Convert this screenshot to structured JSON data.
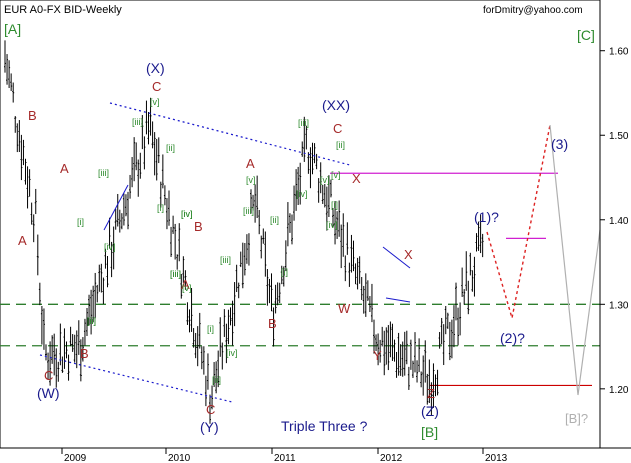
{
  "header": {
    "title": "EUR A0-FX BID-Weekly",
    "author": "forDmitry@yahoo.com"
  },
  "colors": {
    "background": "#ffffff",
    "axis": "#000000",
    "candles": "#000000",
    "brown_labels": "#a52a2a",
    "navy_labels": "#1a1a8c",
    "green_labels": "#2e8b2e",
    "resistance": "#d020d0",
    "support_red": "#cc0000",
    "dashed_green": "#2e7d2e",
    "projection_red": "#dd2222",
    "projection_gray": "#b0b0b0",
    "trend_blue": "#1a1acc"
  },
  "chart_data": {
    "type": "ohlc",
    "title": "EUR A0-FX BID-Weekly",
    "x_tick_labels": [
      "2009",
      "2010",
      "2011",
      "2012",
      "2013"
    ],
    "y_tick_labels": [
      "1.60",
      "1.50",
      "1.40",
      "1.30",
      "1.20"
    ],
    "ylim": [
      1.13,
      1.66
    ],
    "price_path_key_points": [
      {
        "date": "2008-07",
        "price": 1.6
      },
      {
        "date": "2008-10",
        "price": 1.4
      },
      {
        "date": "2008-11",
        "price": 1.24
      },
      {
        "date": "2009-03",
        "price": 1.25
      },
      {
        "date": "2009-11",
        "price": 1.51
      },
      {
        "date": "2010-06",
        "price": 1.19
      },
      {
        "date": "2010-11",
        "price": 1.42
      },
      {
        "date": "2011-01",
        "price": 1.29
      },
      {
        "date": "2011-05",
        "price": 1.49
      },
      {
        "date": "2012-01",
        "price": 1.26
      },
      {
        "date": "2012-07",
        "price": 1.21
      },
      {
        "date": "2013-01",
        "price": 1.37
      }
    ],
    "horizontal_levels": [
      {
        "price": 1.455,
        "style": "solid",
        "color": "magenta"
      },
      {
        "price": 1.378,
        "style": "solid",
        "color": "magenta"
      },
      {
        "price": 1.3,
        "style": "dashed",
        "color": "green"
      },
      {
        "price": 1.251,
        "style": "dashed",
        "color": "green"
      },
      {
        "price": 1.204,
        "style": "solid",
        "color": "red"
      }
    ],
    "projections": [
      {
        "color": "red",
        "style": "dotted",
        "points": [
          {
            "date": "2013-01",
            "price": 1.37
          },
          {
            "date": "2013-04",
            "price": 1.28
          },
          {
            "date": "2013-08",
            "price": 1.5
          }
        ]
      },
      {
        "color": "gray",
        "style": "solid",
        "points": [
          {
            "date": "2013-08",
            "price": 1.5
          },
          {
            "date": "2013-12",
            "price": 1.2
          },
          {
            "date": "2014-03",
            "price": 1.39
          }
        ]
      }
    ]
  },
  "labels": {
    "top_left_A": "[A]",
    "top_right_C": "[C]",
    "W_top": "(X)",
    "C_at_X": "C",
    "XX": "(XX)",
    "C_at_XX": "C",
    "X_right": "X",
    "wave_3": "(3)",
    "wave_1": "(1)?",
    "wave_2": "(2)?",
    "B_bracket": "[B]",
    "B_projected": "[B]?",
    "W_wave": "(W)",
    "C_low_W": "C",
    "B_low": "B",
    "A_mid": "A",
    "A_top": "A",
    "B_top": "B",
    "A_low": "A",
    "Y_wave": "(Y)",
    "C_low_Y": "C",
    "A_2011": "A",
    "B_2011": "B",
    "W_2011": "W",
    "X_2012": "X",
    "Y_2012": "Y",
    "Z_2012": "Z",
    "Z_wave": "(Z)",
    "triple_three": "Triple Three ?",
    "B_left": "B",
    "green_iii_1": "[iii]",
    "green_i_1": "[i]",
    "green_iv_1": "[iv]",
    "green_ii_1": "[ii]",
    "green_v_1": "[v]",
    "green_iii_2": "[iii]",
    "green_ii_2": "[ii]",
    "green_i_2": "[i]",
    "green_iv_2": "[iv]",
    "green_iii_3": "[iii]",
    "green_v_2": "[v]",
    "green_iii_4": "[iii]",
    "green_i_3": "[i]",
    "green_iv_3": "[iv]",
    "green_ii_3": "[ii]",
    "green_v_3": "[v]",
    "green_iii_5": "[iii]",
    "green_ii_4": "[ii]",
    "green_i_4": "[i]",
    "green_iv_4": "[iv]",
    "green_v_4": "[v]",
    "green_iii_6": "[iii]",
    "green_i_5": "[i]",
    "green_iv_5": "[iv]",
    "green_ii_5": "[ii]",
    "green_v_5": "[v]",
    "green_iii_7": "[iii]",
    "green_ii_6": "[ii]",
    "green_iv_6": "[iv]"
  }
}
